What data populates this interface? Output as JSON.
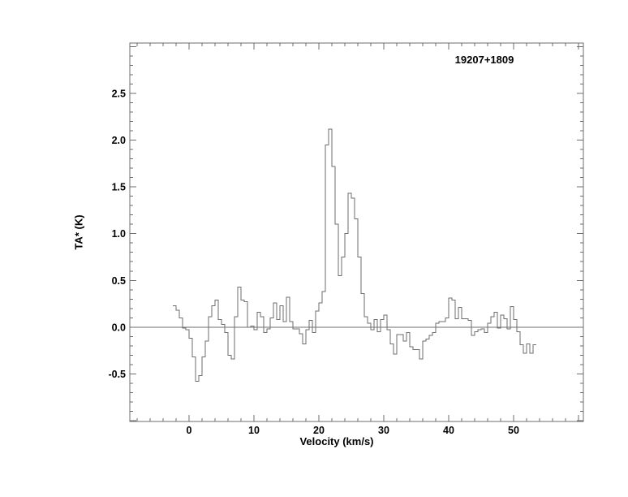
{
  "figure": {
    "title": "19207+1809",
    "xlabel": "Velocity (km/s)",
    "ylabel": "TA* (K)"
  },
  "colors": {
    "background": "#ffffff",
    "plot_lines": "#6e6e6e",
    "text": "#000000"
  },
  "chart_data": {
    "type": "line",
    "style": "histogram-step",
    "title": "19207+1809",
    "xlabel": "Velocity (km/s)",
    "ylabel": "TA* (K)",
    "xlim": [
      -9.125,
      60.75
    ],
    "ylim": [
      -1.01,
      3.04
    ],
    "grid": false,
    "legend": "none",
    "zero_baseline": true,
    "x_major_ticks": [
      0,
      10,
      20,
      30,
      40,
      50
    ],
    "x_tick_labels": [
      "0",
      "10",
      "20",
      "30",
      "40",
      "50"
    ],
    "x_minor_tick_step": 2,
    "y_major_ticks": [
      -0.5,
      0.0,
      0.5,
      1.0,
      1.5,
      2.0,
      2.5
    ],
    "y_tick_labels": [
      "-0.5",
      "0.0",
      "0.5",
      "1.0",
      "1.5",
      "2.0",
      "2.5"
    ],
    "y_minor_tick_step": 0.1,
    "bin_width": 0.5,
    "x": [
      -2.5,
      -2.0,
      -1.5,
      -1.0,
      -0.5,
      0.0,
      0.5,
      1.0,
      1.5,
      2.0,
      2.5,
      3.0,
      3.5,
      4.0,
      4.5,
      5.0,
      5.5,
      6.0,
      6.5,
      7.0,
      7.5,
      8.0,
      8.5,
      9.0,
      9.5,
      10.0,
      10.5,
      11.0,
      11.5,
      12.0,
      12.5,
      13.0,
      13.5,
      14.0,
      14.5,
      15.0,
      15.5,
      16.0,
      16.5,
      17.0,
      17.5,
      18.0,
      18.5,
      19.0,
      19.5,
      20.0,
      20.5,
      21.0,
      21.5,
      22.0,
      22.5,
      23.0,
      23.5,
      24.0,
      24.5,
      25.0,
      25.5,
      26.0,
      26.5,
      27.0,
      27.5,
      28.0,
      28.5,
      29.0,
      29.5,
      30.0,
      30.5,
      31.0,
      31.5,
      32.0,
      32.5,
      33.0,
      33.5,
      34.0,
      34.5,
      35.0,
      35.5,
      36.0,
      36.5,
      37.0,
      37.5,
      38.0,
      38.5,
      39.0,
      39.5,
      40.0,
      40.5,
      41.0,
      41.5,
      42.0,
      42.5,
      43.0,
      43.5,
      44.0,
      44.5,
      45.0,
      45.5,
      46.0,
      46.5,
      47.0,
      47.5,
      48.0,
      48.5,
      49.0,
      49.5,
      50.0,
      50.5,
      51.0,
      51.5,
      52.0,
      52.5,
      53.0
    ],
    "values": [
      0.23,
      0.18,
      0.1,
      -0.01,
      -0.03,
      -0.12,
      -0.32,
      -0.58,
      -0.52,
      -0.32,
      -0.15,
      0.11,
      0.23,
      0.29,
      0.08,
      0.03,
      -0.06,
      -0.3,
      -0.34,
      0.11,
      0.43,
      0.29,
      0.27,
      0.0,
      0.01,
      -0.03,
      0.16,
      0.11,
      -0.06,
      -0.02,
      0.1,
      0.26,
      0.08,
      0.23,
      0.06,
      0.32,
      0.06,
      -0.02,
      -0.02,
      -0.07,
      -0.18,
      -0.03,
      0.07,
      -0.06,
      0.17,
      0.26,
      0.38,
      1.95,
      2.12,
      1.72,
      1.1,
      0.55,
      0.75,
      1.0,
      1.43,
      1.38,
      1.16,
      0.75,
      0.36,
      0.11,
      0.04,
      -0.03,
      0.08,
      -0.05,
      0.08,
      0.13,
      -0.03,
      -0.18,
      -0.29,
      -0.08,
      -0.08,
      -0.15,
      -0.06,
      -0.21,
      -0.24,
      -0.24,
      -0.34,
      -0.15,
      -0.13,
      -0.09,
      -0.06,
      0.04,
      0.06,
      0.06,
      0.1,
      0.31,
      0.29,
      0.09,
      0.21,
      0.09,
      0.09,
      0.07,
      -0.09,
      -0.05,
      -0.03,
      -0.02,
      -0.06,
      0.04,
      0.11,
      0.16,
      -0.01,
      0.13,
      0.09,
      -0.02,
      0.22,
      0.08,
      -0.05,
      -0.19,
      -0.28,
      -0.18,
      -0.28,
      -0.19
    ]
  }
}
